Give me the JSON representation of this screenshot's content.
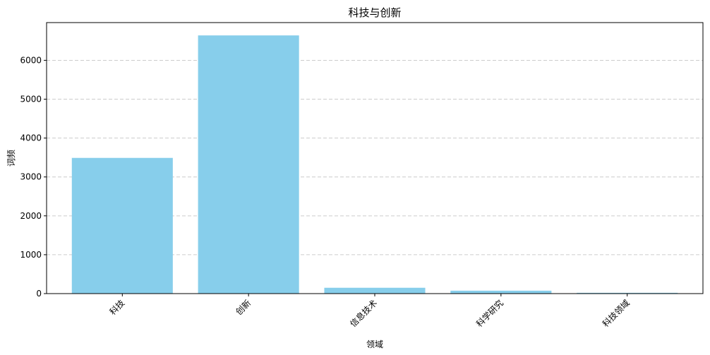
{
  "chart_data": {
    "type": "bar",
    "title": "科技与创新",
    "xlabel": "领域",
    "ylabel": "词频",
    "categories": [
      "科技",
      "创新",
      "信息技术",
      "科学研究",
      "科技领域"
    ],
    "values": [
      3490,
      6640,
      150,
      75,
      20
    ],
    "ylim": [
      0,
      6970
    ],
    "yticks": [
      0,
      1000,
      2000,
      3000,
      4000,
      5000,
      6000
    ],
    "bar_color": "#87CEEB",
    "grid": "y-dashed",
    "legend": "none"
  }
}
